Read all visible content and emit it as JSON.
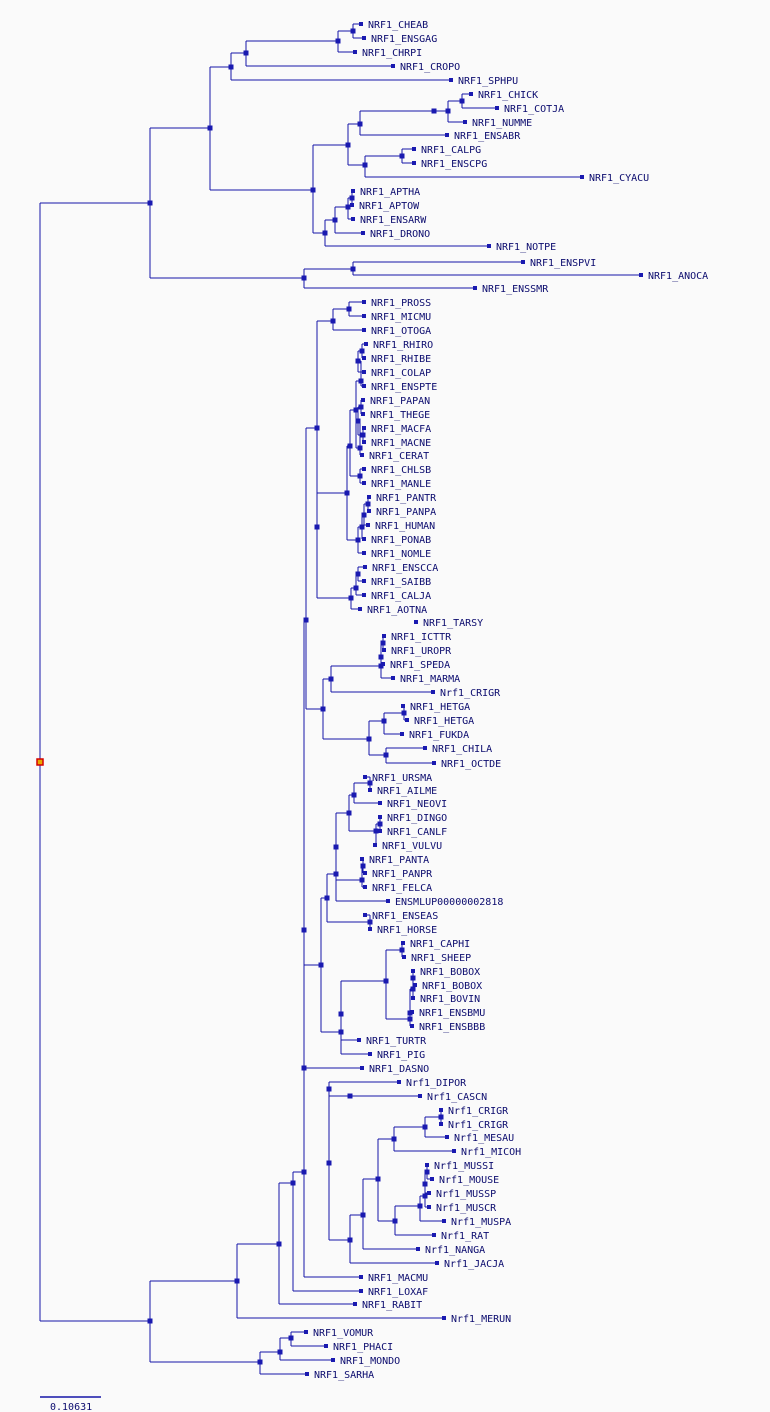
{
  "colors": {
    "branch": "#1515a8",
    "node": "#1a1ab0",
    "label": "#0b0b6e",
    "root_fill": "#e8a800",
    "root_border": "#d40000"
  },
  "scale_bar": {
    "label": "0.10631"
  },
  "leaves": [
    {
      "id": "cheab",
      "label": "NRF1_CHEAB"
    },
    {
      "id": "ensgag",
      "label": "NRF1_ENSGAG"
    },
    {
      "id": "chrpi",
      "label": "NRF1_CHRPI"
    },
    {
      "id": "cropo",
      "label": "NRF1_CROPO"
    },
    {
      "id": "sphpu",
      "label": "NRF1_SPHPU"
    },
    {
      "id": "chick",
      "label": "NRF1_CHICK"
    },
    {
      "id": "cotja",
      "label": "NRF1_COTJA"
    },
    {
      "id": "numme",
      "label": "NRF1_NUMME"
    },
    {
      "id": "ensabr",
      "label": "NRF1_ENSABR"
    },
    {
      "id": "calpg",
      "label": "NRF1_CALPG"
    },
    {
      "id": "enscpg",
      "label": "NRF1_ENSCPG"
    },
    {
      "id": "cyacu",
      "label": "NRF1_CYACU"
    },
    {
      "id": "aptha",
      "label": "NRF1_APTHA"
    },
    {
      "id": "aptow",
      "label": "NRF1_APTOW"
    },
    {
      "id": "ensarw",
      "label": "NRF1_ENSARW"
    },
    {
      "id": "drono",
      "label": "NRF1_DRONO"
    },
    {
      "id": "notpe",
      "label": "NRF1_NOTPE"
    },
    {
      "id": "enspvi",
      "label": "NRF1_ENSPVI"
    },
    {
      "id": "anoca",
      "label": "NRF1_ANOCA"
    },
    {
      "id": "enssmr",
      "label": "NRF1_ENSSMR"
    },
    {
      "id": "pross",
      "label": "NRF1_PROSS"
    },
    {
      "id": "micmu",
      "label": "NRF1_MICMU"
    },
    {
      "id": "otoga",
      "label": "NRF1_OTOGA"
    },
    {
      "id": "rhiro",
      "label": "NRF1_RHIRO"
    },
    {
      "id": "rhibe",
      "label": "NRF1_RHIBE"
    },
    {
      "id": "colap",
      "label": "NRF1_COLAP"
    },
    {
      "id": "enspte",
      "label": "NRF1_ENSPTE"
    },
    {
      "id": "papan",
      "label": "NRF1_PAPAN"
    },
    {
      "id": "thege",
      "label": "NRF1_THEGE"
    },
    {
      "id": "macfa",
      "label": "NRF1_MACFA"
    },
    {
      "id": "macne",
      "label": "NRF1_MACNE"
    },
    {
      "id": "cerat",
      "label": "NRF1_CERAT"
    },
    {
      "id": "chlsb",
      "label": "NRF1_CHLSB"
    },
    {
      "id": "manle",
      "label": "NRF1_MANLE"
    },
    {
      "id": "pantr",
      "label": "NRF1_PANTR"
    },
    {
      "id": "panpa",
      "label": "NRF1_PANPA"
    },
    {
      "id": "human",
      "label": "NRF1_HUMAN"
    },
    {
      "id": "ponab",
      "label": "NRF1_PONAB"
    },
    {
      "id": "nomle",
      "label": "NRF1_NOMLE"
    },
    {
      "id": "enscca",
      "label": "NRF1_ENSCCA"
    },
    {
      "id": "saibb",
      "label": "NRF1_SAIBB"
    },
    {
      "id": "calja",
      "label": "NRF1_CALJA"
    },
    {
      "id": "aotna",
      "label": "NRF1_AOTNA"
    },
    {
      "id": "tarsy",
      "label": "NRF1_TARSY"
    },
    {
      "id": "ictr",
      "label": "NRF1_ICTTR"
    },
    {
      "id": "uropr",
      "label": "NRF1_UROPR"
    },
    {
      "id": "speda",
      "label": "NRF1_SPEDA"
    },
    {
      "id": "marma",
      "label": "NRF1_MARMA"
    },
    {
      "id": "crigr1",
      "label": "Nrf1_CRIGR"
    },
    {
      "id": "hetga1",
      "label": "NRF1_HETGA"
    },
    {
      "id": "hetga2",
      "label": "NRF1_HETGA"
    },
    {
      "id": "fukda",
      "label": "NRF1_FUKDA"
    },
    {
      "id": "chila",
      "label": "NRF1_CHILA"
    },
    {
      "id": "octde",
      "label": "NRF1_OCTDE"
    },
    {
      "id": "ursma",
      "label": "NRF1_URSMA"
    },
    {
      "id": "ailme",
      "label": "NRF1_AILME"
    },
    {
      "id": "neovi",
      "label": "NRF1_NEOVI"
    },
    {
      "id": "dingo",
      "label": "NRF1_DINGO"
    },
    {
      "id": "canlf",
      "label": "NRF1_CANLF"
    },
    {
      "id": "vulvu",
      "label": "NRF1_VULVU"
    },
    {
      "id": "panta",
      "label": "NRF1_PANTA"
    },
    {
      "id": "panpr",
      "label": "NRF1_PANPR"
    },
    {
      "id": "felca",
      "label": "NRF1_FELCA"
    },
    {
      "id": "enslup",
      "label": "ENSMLUP00000002818"
    },
    {
      "id": "enseas",
      "label": "NRF1_ENSEAS"
    },
    {
      "id": "horse",
      "label": "NRF1_HORSE"
    },
    {
      "id": "caphi",
      "label": "NRF1_CAPHI"
    },
    {
      "id": "sheep",
      "label": "NRF1_SHEEP"
    },
    {
      "id": "bobox1",
      "label": "NRF1_BOBOX"
    },
    {
      "id": "bobox2",
      "label": "NRF1_BOBOX"
    },
    {
      "id": "bovin",
      "label": "NRF1_BOVIN"
    },
    {
      "id": "ensbmu",
      "label": "NRF1_ENSBMU"
    },
    {
      "id": "ensbbb",
      "label": "NRF1_ENSBBB"
    },
    {
      "id": "turtr",
      "label": "NRF1_TURTR"
    },
    {
      "id": "pig",
      "label": "NRF1_PIG"
    },
    {
      "id": "dasno",
      "label": "NRF1_DASNO"
    },
    {
      "id": "dipor",
      "label": "Nrf1_DIPOR"
    },
    {
      "id": "cascn",
      "label": "Nrf1_CASCN"
    },
    {
      "id": "crigr2",
      "label": "Nrf1_CRIGR"
    },
    {
      "id": "crigr3",
      "label": "Nrf1_CRIGR"
    },
    {
      "id": "mesau",
      "label": "Nrf1_MESAU"
    },
    {
      "id": "micoh",
      "label": "Nrf1_MICOH"
    },
    {
      "id": "mussi",
      "label": "Nrf1_MUSSI"
    },
    {
      "id": "mouse",
      "label": "Nrf1_MOUSE"
    },
    {
      "id": "mussp",
      "label": "Nrf1_MUSSP"
    },
    {
      "id": "muscr",
      "label": "Nrf1_MUSCR"
    },
    {
      "id": "muspa",
      "label": "Nrf1_MUSPA"
    },
    {
      "id": "rat",
      "label": "Nrf1_RAT"
    },
    {
      "id": "nanga",
      "label": "Nrf1_NANGA"
    },
    {
      "id": "jacja",
      "label": "Nrf1_JACJA"
    },
    {
      "id": "macmu",
      "label": "NRF1_MACMU"
    },
    {
      "id": "loxaf",
      "label": "NRF1_LOXAF"
    },
    {
      "id": "rabit",
      "label": "NRF1_RABIT"
    },
    {
      "id": "merun",
      "label": "Nrf1_MERUN"
    },
    {
      "id": "vomur",
      "label": "NRF1_VOMUR"
    },
    {
      "id": "phaci",
      "label": "NRF1_PHACI"
    },
    {
      "id": "mondo",
      "label": "NRF1_MONDO"
    },
    {
      "id": "sarha",
      "label": "NRF1_SARHA"
    }
  ]
}
